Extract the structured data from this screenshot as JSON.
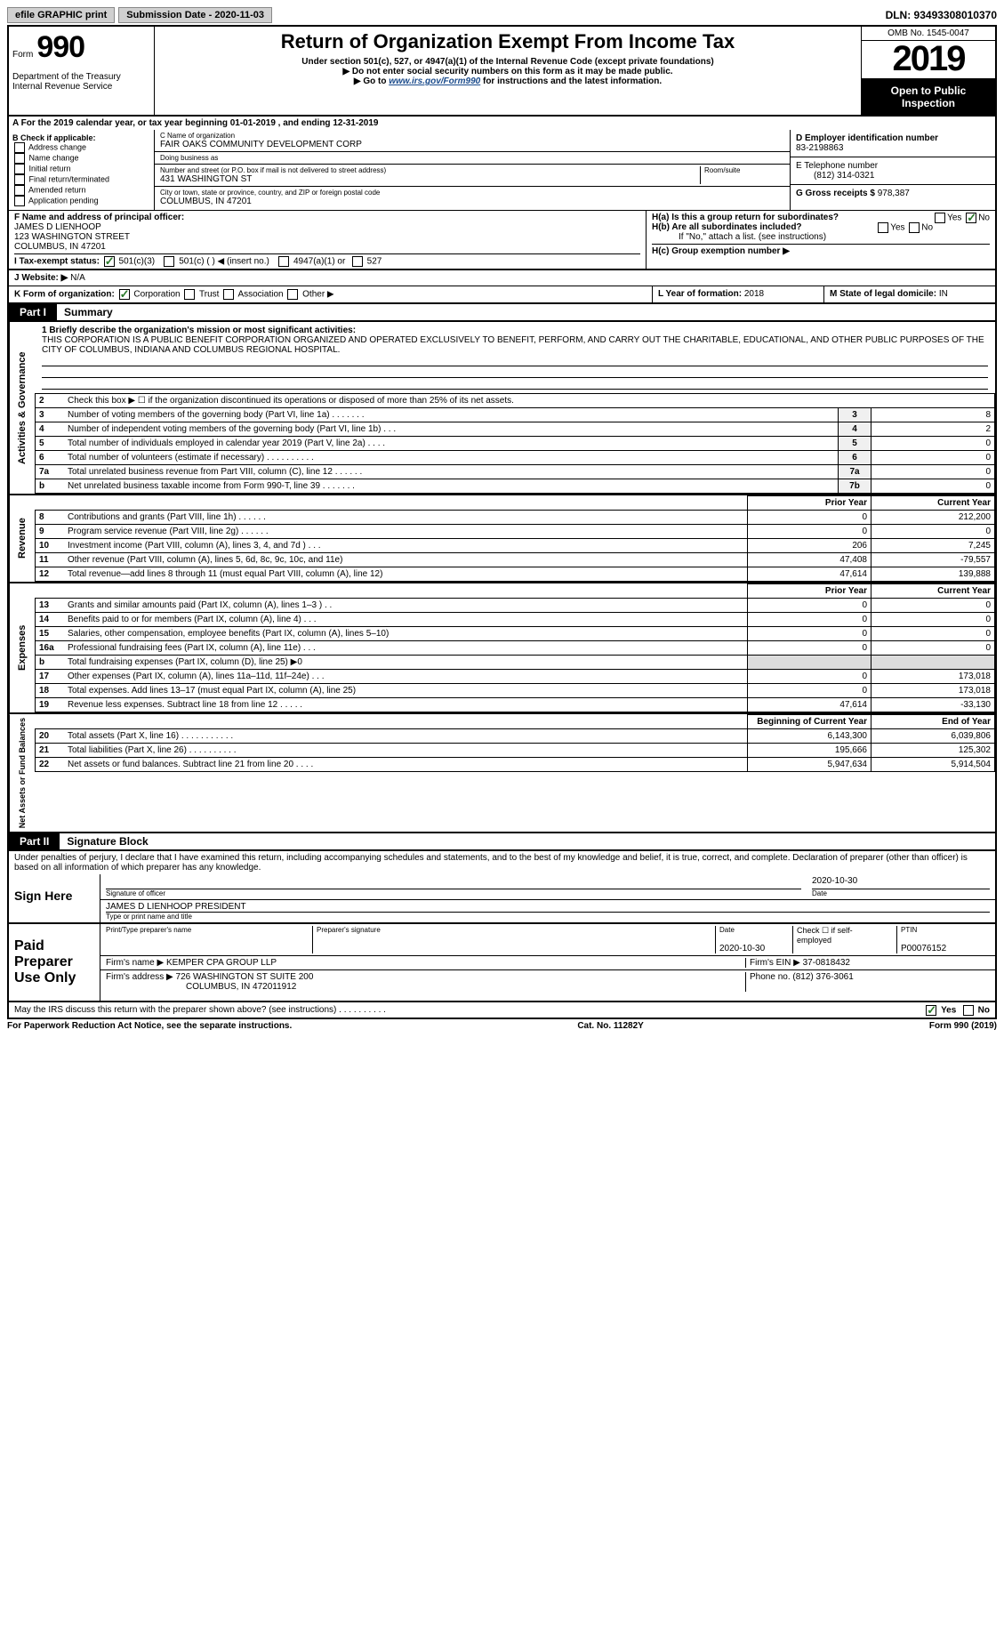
{
  "topbar": {
    "btn1": "efile GRAPHIC print",
    "subdate_lbl": "Submission Date - 2020-11-03",
    "dln": "DLN: 93493308010370"
  },
  "header": {
    "form_word": "Form",
    "form_no": "990",
    "dept": "Department of the Treasury\nInternal Revenue Service",
    "title": "Return of Organization Exempt From Income Tax",
    "sub1": "Under section 501(c), 527, or 4947(a)(1) of the Internal Revenue Code (except private foundations)",
    "sub2": "▶ Do not enter social security numbers on this form as it may be made public.",
    "sub3_pre": "▶ Go to ",
    "sub3_link": "www.irs.gov/Form990",
    "sub3_post": " for instructions and the latest information.",
    "omb": "OMB No. 1545-0047",
    "year": "2019",
    "open": "Open to Public Inspection"
  },
  "row_a": "A For the 2019 calendar year, or tax year beginning 01-01-2019  , and ending 12-31-2019",
  "section_b": {
    "title": "B Check if applicable:",
    "opts": [
      "Address change",
      "Name change",
      "Initial return",
      "Final return/terminated",
      "Amended return",
      "Application pending"
    ]
  },
  "section_c": {
    "name_lbl": "C Name of organization",
    "name": "FAIR OAKS COMMUNITY DEVELOPMENT CORP",
    "dba_lbl": "Doing business as",
    "dba": "",
    "addr_lbl": "Number and street (or P.O. box if mail is not delivered to street address)",
    "room_lbl": "Room/suite",
    "addr": "431 WASHINGTON ST",
    "city_lbl": "City or town, state or province, country, and ZIP or foreign postal code",
    "city": "COLUMBUS, IN  47201"
  },
  "section_d": {
    "ein_lbl": "D Employer identification number",
    "ein": "83-2198863",
    "tel_lbl": "E Telephone number",
    "tel": "(812) 314-0321",
    "gross_lbl": "G Gross receipts $",
    "gross": "978,387"
  },
  "section_f": {
    "lbl": "F Name and address of principal officer:",
    "name": "JAMES D LIENHOOP",
    "addr1": "123 WASHINGTON STREET",
    "addr2": "COLUMBUS, IN  47201"
  },
  "section_h": {
    "ha": "H(a)  Is this a group return for subordinates?",
    "hb": "H(b)  Are all subordinates included?",
    "hb2": "If \"No,\" attach a list. (see instructions)",
    "hc": "H(c)  Group exemption number ▶",
    "yes": "Yes",
    "no": "No"
  },
  "row_i": {
    "lbl": "I  Tax-exempt status:",
    "o1": "501(c)(3)",
    "o2": "501(c) (  ) ◀ (insert no.)",
    "o3": "4947(a)(1) or",
    "o4": "527"
  },
  "row_j": {
    "lbl": "J  Website: ▶",
    "val": "N/A"
  },
  "row_k": {
    "lbl": "K Form of organization:",
    "o1": "Corporation",
    "o2": "Trust",
    "o3": "Association",
    "o4": "Other ▶",
    "l_lbl": "L Year of formation:",
    "l_val": "2018",
    "m_lbl": "M State of legal domicile:",
    "m_val": "IN"
  },
  "part1": {
    "lbl": "Part I",
    "title": "Summary"
  },
  "mission": {
    "lbl": "1  Briefly describe the organization's mission or most significant activities:",
    "text": "THIS CORPORATION IS A PUBLIC BENEFIT CORPORATION ORGANIZED AND OPERATED EXCLUSIVELY TO BENEFIT, PERFORM, AND CARRY OUT THE CHARITABLE, EDUCATIONAL, AND OTHER PUBLIC PURPOSES OF THE CITY OF COLUMBUS, INDIANA AND COLUMBUS REGIONAL HOSPITAL."
  },
  "gov_lines": [
    {
      "n": "2",
      "d": "Check this box ▶ ☐  if the organization discontinued its operations or disposed of more than 25% of its net assets.",
      "box": "",
      "v": ""
    },
    {
      "n": "3",
      "d": "Number of voting members of the governing body (Part VI, line 1a)  .   .   .   .   .   .   .",
      "box": "3",
      "v": "8"
    },
    {
      "n": "4",
      "d": "Number of independent voting members of the governing body (Part VI, line 1b)   .   .   .",
      "box": "4",
      "v": "2"
    },
    {
      "n": "5",
      "d": "Total number of individuals employed in calendar year 2019 (Part V, line 2a)   .   .   .   .",
      "box": "5",
      "v": "0"
    },
    {
      "n": "6",
      "d": "Total number of volunteers (estimate if necessary)   .   .   .   .   .   .   .   .   .   .",
      "box": "6",
      "v": "0"
    },
    {
      "n": "7a",
      "d": "Total unrelated business revenue from Part VIII, column (C), line 12   .   .   .   .   .   .",
      "box": "7a",
      "v": "0"
    },
    {
      "n": "b",
      "d": "Net unrelated business taxable income from Form 990-T, line 39   .   .   .   .   .   .   .",
      "box": "7b",
      "v": "0"
    }
  ],
  "rev_hdr": {
    "py": "Prior Year",
    "cy": "Current Year"
  },
  "rev_lines": [
    {
      "n": "8",
      "d": "Contributions and grants (Part VIII, line 1h)   .   .   .   .   .   .",
      "py": "0",
      "cy": "212,200"
    },
    {
      "n": "9",
      "d": "Program service revenue (Part VIII, line 2g)   .   .   .   .   .   .",
      "py": "0",
      "cy": "0"
    },
    {
      "n": "10",
      "d": "Investment income (Part VIII, column (A), lines 3, 4, and 7d )   .   .   .",
      "py": "206",
      "cy": "7,245"
    },
    {
      "n": "11",
      "d": "Other revenue (Part VIII, column (A), lines 5, 6d, 8c, 9c, 10c, and 11e)",
      "py": "47,408",
      "cy": "-79,557"
    },
    {
      "n": "12",
      "d": "Total revenue—add lines 8 through 11 (must equal Part VIII, column (A), line 12)",
      "py": "47,614",
      "cy": "139,888"
    }
  ],
  "exp_lines": [
    {
      "n": "13",
      "d": "Grants and similar amounts paid (Part IX, column (A), lines 1–3 )  .   .",
      "py": "0",
      "cy": "0"
    },
    {
      "n": "14",
      "d": "Benefits paid to or for members (Part IX, column (A), line 4)  .   .   .",
      "py": "0",
      "cy": "0"
    },
    {
      "n": "15",
      "d": "Salaries, other compensation, employee benefits (Part IX, column (A), lines 5–10)",
      "py": "0",
      "cy": "0"
    },
    {
      "n": "16a",
      "d": "Professional fundraising fees (Part IX, column (A), line 11e)  .   .   .",
      "py": "0",
      "cy": "0"
    },
    {
      "n": "b",
      "d": "Total fundraising expenses (Part IX, column (D), line 25) ▶0",
      "py": "",
      "cy": "",
      "shade": true
    },
    {
      "n": "17",
      "d": "Other expenses (Part IX, column (A), lines 11a–11d, 11f–24e)  .   .   .",
      "py": "0",
      "cy": "173,018"
    },
    {
      "n": "18",
      "d": "Total expenses. Add lines 13–17 (must equal Part IX, column (A), line 25)",
      "py": "0",
      "cy": "173,018"
    },
    {
      "n": "19",
      "d": "Revenue less expenses. Subtract line 18 from line 12   .   .   .   .   .",
      "py": "47,614",
      "cy": "-33,130"
    }
  ],
  "na_hdr": {
    "py": "Beginning of Current Year",
    "cy": "End of Year"
  },
  "na_lines": [
    {
      "n": "20",
      "d": "Total assets (Part X, line 16)  .   .   .   .   .   .   .   .   .   .   .",
      "py": "6,143,300",
      "cy": "6,039,806"
    },
    {
      "n": "21",
      "d": "Total liabilities (Part X, line 26)  .   .   .   .   .   .   .   .   .   .",
      "py": "195,666",
      "cy": "125,302"
    },
    {
      "n": "22",
      "d": "Net assets or fund balances. Subtract line 21 from line 20   .   .   .   .",
      "py": "5,947,634",
      "cy": "5,914,504"
    }
  ],
  "part2": {
    "lbl": "Part II",
    "title": "Signature Block"
  },
  "sig": {
    "decl": "Under penalties of perjury, I declare that I have examined this return, including accompanying schedules and statements, and to the best of my knowledge and belief, it is true, correct, and complete. Declaration of preparer (other than officer) is based on all information of which preparer has any knowledge.",
    "sign_here": "Sign Here",
    "sig_officer": "Signature of officer",
    "date": "2020-10-30",
    "date_lbl": "Date",
    "name": "JAMES D LIENHOOP PRESIDENT",
    "name_lbl": "Type or print name and title",
    "paid": "Paid Preparer Use Only",
    "pname_lbl": "Print/Type preparer's name",
    "psig_lbl": "Preparer's signature",
    "pdate_lbl": "Date",
    "pdate": "2020-10-30",
    "check_lbl": "Check ☐ if self-employed",
    "ptin_lbl": "PTIN",
    "ptin": "P00076152",
    "firm_lbl": "Firm's name  ▶",
    "firm": "KEMPER CPA GROUP LLP",
    "fein_lbl": "Firm's EIN ▶",
    "fein": "37-0818432",
    "faddr_lbl": "Firm's address ▶",
    "faddr": "726 WASHINGTON ST SUITE 200",
    "faddr2": "COLUMBUS, IN  472011912",
    "fphone_lbl": "Phone no.",
    "fphone": "(812) 376-3061",
    "irs_q": "May the IRS discuss this return with the preparer shown above? (see instructions)   .   .   .   .   .   .   .   .   .   ."
  },
  "footer": {
    "l": "For Paperwork Reduction Act Notice, see the separate instructions.",
    "c": "Cat. No. 11282Y",
    "r": "Form 990 (2019)"
  },
  "side": {
    "gov": "Activities & Governance",
    "rev": "Revenue",
    "exp": "Expenses",
    "na": "Net Assets or Fund Balances"
  }
}
